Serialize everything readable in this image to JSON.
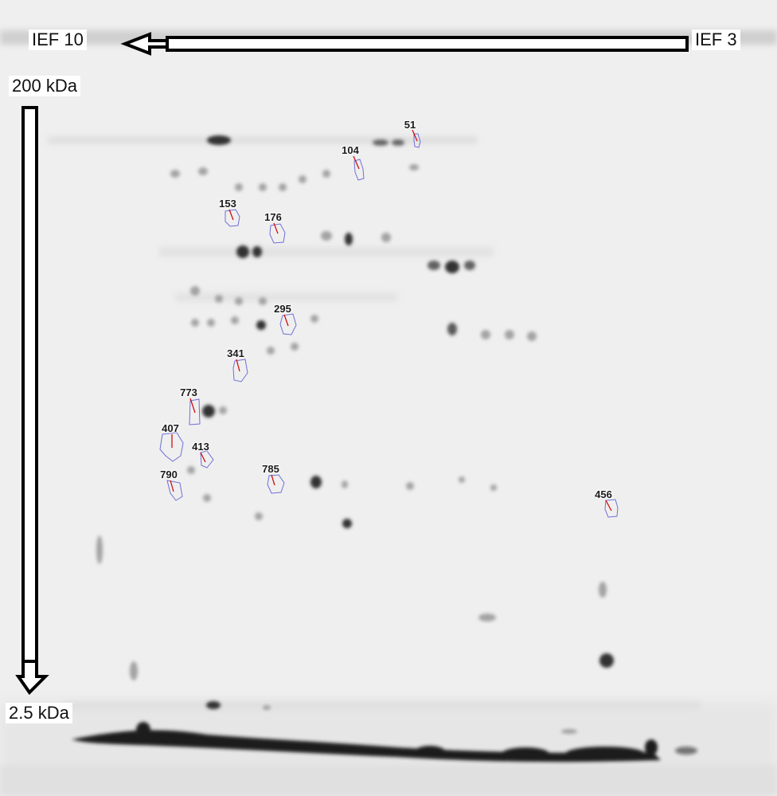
{
  "labels": {
    "ief_left": "IEF 10",
    "ief_right": "IEF 3",
    "mw_top": "200 kDa",
    "mw_bottom": "2.5 kDa"
  },
  "spots": [
    {
      "id": "51"
    },
    {
      "id": "104"
    },
    {
      "id": "153"
    },
    {
      "id": "176"
    },
    {
      "id": "295"
    },
    {
      "id": "341"
    },
    {
      "id": "773"
    },
    {
      "id": "407"
    },
    {
      "id": "413"
    },
    {
      "id": "790"
    },
    {
      "id": "785"
    },
    {
      "id": "456"
    }
  ],
  "colors": {
    "gel_background": "#eeeeee",
    "spot": "#222222",
    "outline": "#6f6fd8",
    "pointer": "#d01010",
    "arrow_fill": "#ffffff",
    "arrow_stroke": "#000000"
  }
}
